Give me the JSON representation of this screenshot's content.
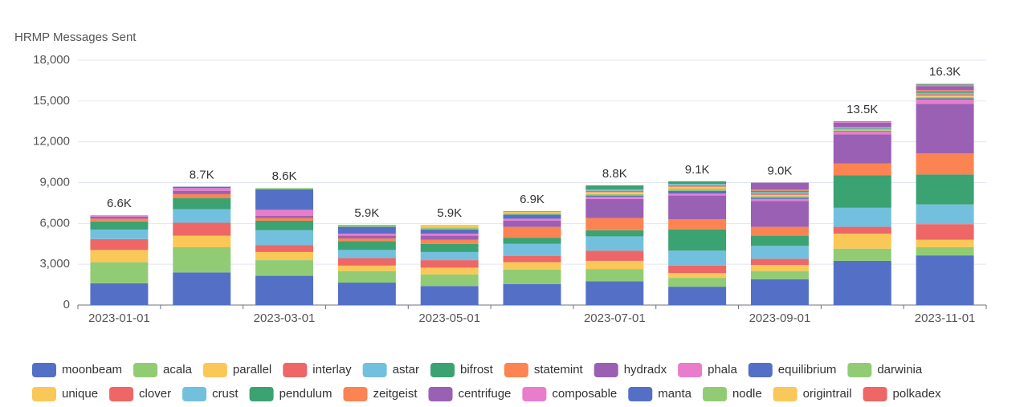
{
  "chart_data": {
    "type": "stacked_bar",
    "y_axis_label": "HRMP Messages Sent",
    "categories": [
      "2023-01-01",
      null,
      "2023-03-01",
      null,
      "2023-05-01",
      null,
      "2023-07-01",
      null,
      "2023-09-01",
      null,
      "2023-11-01"
    ],
    "total_labels": [
      "6.6K",
      "8.7K",
      "8.6K",
      "5.9K",
      "5.9K",
      "6.9K",
      "8.8K",
      "9.1K",
      "9.0K",
      "13.5K",
      "16.3K"
    ],
    "ylim": [
      0,
      18000
    ],
    "yticks": [
      0,
      {
        "value": 3000,
        "label": "3,000"
      },
      {
        "value": 6000,
        "label": "6,000"
      },
      {
        "value": 9000,
        "label": "9,000"
      },
      {
        "value": 12000,
        "label": "12,000"
      },
      {
        "value": 15000,
        "label": "15,000"
      },
      {
        "value": 18000,
        "label": "18,000"
      }
    ],
    "grid": true,
    "legend": "bottom",
    "series": [
      {
        "name": "moonbeam",
        "color": "#5470c6",
        "values": [
          1600,
          2400,
          2150,
          1650,
          1400,
          1550,
          1750,
          1350,
          1900,
          3250,
          3650
        ]
      },
      {
        "name": "acala",
        "color": "#91cc75",
        "values": [
          1550,
          1850,
          1150,
          850,
          850,
          1050,
          900,
          650,
          600,
          900,
          600
        ]
      },
      {
        "name": "parallel",
        "color": "#fac858",
        "values": [
          900,
          850,
          600,
          400,
          500,
          550,
          600,
          350,
          450,
          1100,
          550
        ]
      },
      {
        "name": "interlay",
        "color": "#ee6666",
        "values": [
          800,
          950,
          500,
          550,
          550,
          450,
          750,
          550,
          450,
          500,
          1150
        ]
      },
      {
        "name": "astar",
        "color": "#73c0de",
        "values": [
          700,
          1000,
          1100,
          600,
          600,
          900,
          1050,
          1100,
          950,
          1400,
          1450
        ]
      },
      {
        "name": "bifrost",
        "color": "#3ba272",
        "values": [
          600,
          800,
          700,
          650,
          600,
          450,
          450,
          1550,
          750,
          2400,
          2200
        ]
      },
      {
        "name": "statemint",
        "color": "#fc8452",
        "values": [
          200,
          300,
          200,
          200,
          300,
          800,
          900,
          750,
          650,
          850,
          1550
        ]
      },
      {
        "name": "hydradx",
        "color": "#9a60b4",
        "values": [
          150,
          250,
          150,
          200,
          300,
          450,
          1400,
          1750,
          1900,
          2150,
          3650
        ]
      },
      {
        "name": "phala",
        "color": "#ea7ccc",
        "values": [
          100,
          200,
          450,
          150,
          150,
          150,
          150,
          150,
          150,
          200,
          300
        ]
      },
      {
        "name": "equilibrium",
        "color": "#5470c6",
        "values": [
          0,
          100,
          1500,
          500,
          300,
          300,
          100,
          200,
          100,
          50,
          100
        ]
      },
      {
        "name": "darwinia",
        "color": "#91cc75",
        "values": [
          0,
          0,
          100,
          150,
          150,
          100,
          100,
          150,
          100,
          50,
          100
        ]
      },
      {
        "name": "unique",
        "color": "#fac858",
        "values": [
          0,
          0,
          0,
          0,
          200,
          100,
          150,
          150,
          100,
          50,
          100
        ]
      },
      {
        "name": "clover",
        "color": "#ee6666",
        "values": [
          0,
          0,
          0,
          0,
          0,
          50,
          100,
          100,
          100,
          50,
          100
        ]
      },
      {
        "name": "crust",
        "color": "#73c0de",
        "values": [
          0,
          0,
          0,
          0,
          0,
          0,
          100,
          100,
          100,
          50,
          100
        ]
      },
      {
        "name": "pendulum",
        "color": "#3ba272",
        "values": [
          0,
          0,
          0,
          0,
          0,
          0,
          300,
          200,
          100,
          50,
          100
        ]
      },
      {
        "name": "zeitgeist",
        "color": "#fc8452",
        "values": [
          0,
          0,
          0,
          0,
          0,
          0,
          0,
          0,
          100,
          50,
          100
        ]
      },
      {
        "name": "centrifuge",
        "color": "#9a60b4",
        "values": [
          0,
          0,
          0,
          0,
          0,
          0,
          0,
          0,
          500,
          300,
          300
        ]
      },
      {
        "name": "composable",
        "color": "#ea7ccc",
        "values": [
          0,
          0,
          0,
          0,
          0,
          0,
          0,
          0,
          0,
          50,
          50
        ]
      },
      {
        "name": "manta",
        "color": "#5470c6",
        "values": [
          0,
          0,
          0,
          0,
          0,
          0,
          0,
          0,
          0,
          50,
          50
        ]
      },
      {
        "name": "nodle",
        "color": "#91cc75",
        "values": [
          0,
          0,
          0,
          0,
          0,
          0,
          0,
          0,
          0,
          0,
          50
        ]
      },
      {
        "name": "origintrail",
        "color": "#fac858",
        "values": [
          0,
          0,
          0,
          0,
          0,
          0,
          0,
          0,
          0,
          0,
          50
        ]
      },
      {
        "name": "polkadex",
        "color": "#ee6666",
        "values": [
          0,
          0,
          0,
          0,
          0,
          0,
          0,
          0,
          0,
          0,
          0
        ]
      }
    ]
  }
}
